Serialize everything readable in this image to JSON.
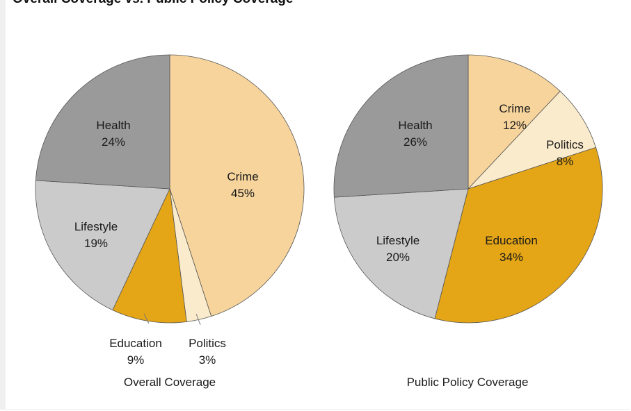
{
  "title": "Overall Coverage vs. Public Policy Coverage",
  "colors": {
    "Crime": "#f6d49c",
    "Politics": "#faebcc",
    "Education": "#e4a516",
    "Lifestyle": "#cbcbcb",
    "Health": "#9a9a9a"
  },
  "chart_data": [
    {
      "type": "pie",
      "caption": "Overall Coverage",
      "slices": [
        {
          "label": "Crime",
          "value": 45,
          "display": "45%"
        },
        {
          "label": "Politics",
          "value": 3,
          "display": "3%"
        },
        {
          "label": "Education",
          "value": 9,
          "display": "9%"
        },
        {
          "label": "Lifestyle",
          "value": 19,
          "display": "19%"
        },
        {
          "label": "Health",
          "value": 24,
          "display": "24%"
        }
      ]
    },
    {
      "type": "pie",
      "caption": "Public Policy Coverage",
      "slices": [
        {
          "label": "Crime",
          "value": 12,
          "display": "12%"
        },
        {
          "label": "Politics",
          "value": 8,
          "display": "8%"
        },
        {
          "label": "Education",
          "value": 34,
          "display": "34%"
        },
        {
          "label": "Lifestyle",
          "value": 20,
          "display": "20%"
        },
        {
          "label": "Health",
          "value": 26,
          "display": "26%"
        }
      ]
    }
  ]
}
